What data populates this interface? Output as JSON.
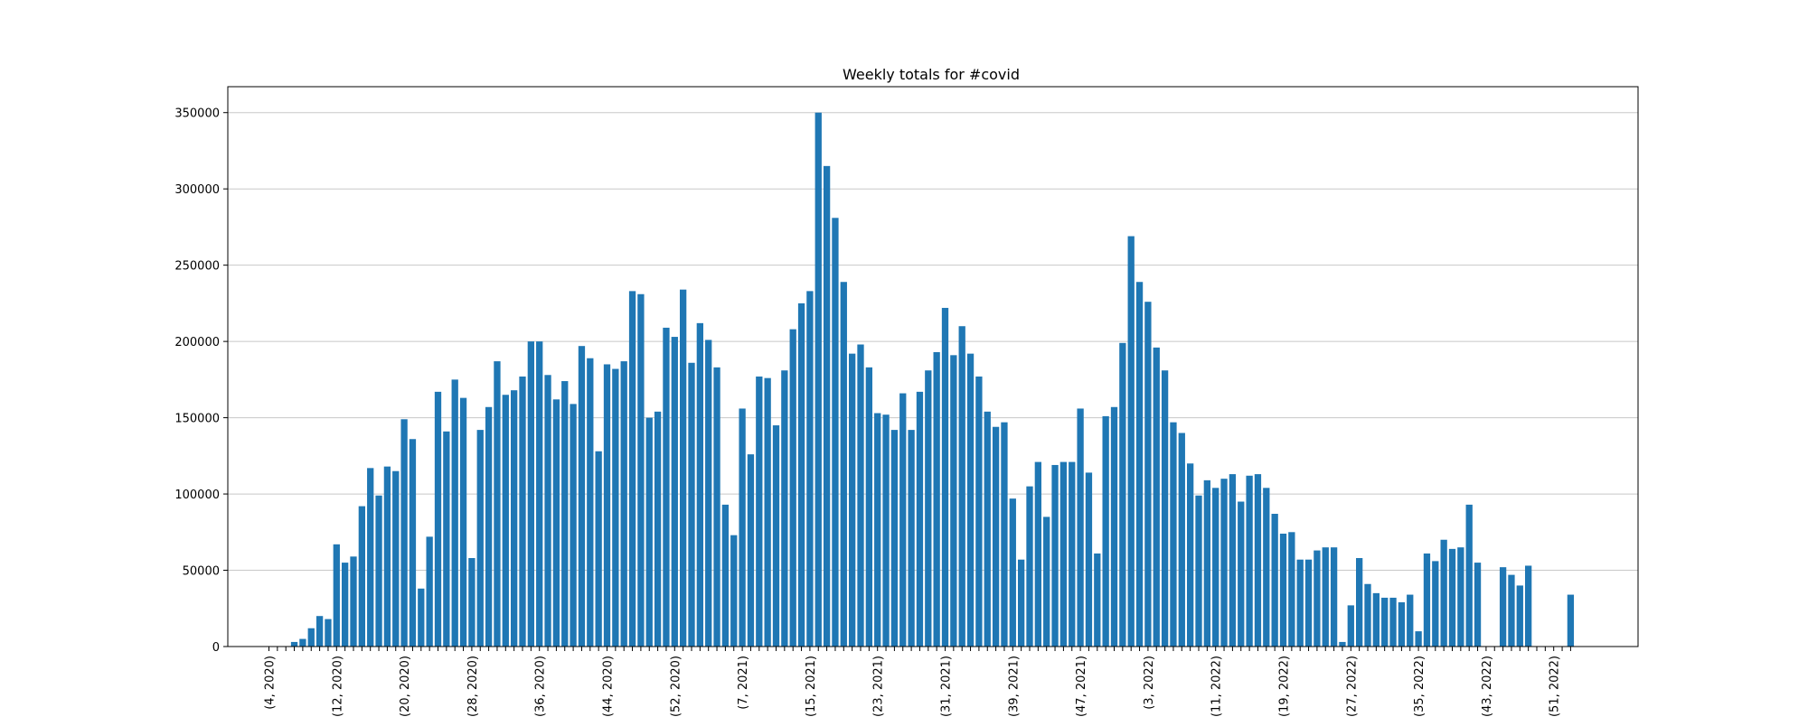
{
  "chart_data": {
    "type": "bar",
    "title": "Weekly totals for #covid",
    "xlabel": "",
    "ylabel": "",
    "ylim": [
      0,
      367000
    ],
    "yticks": [
      0,
      50000,
      100000,
      150000,
      200000,
      250000,
      300000,
      350000
    ],
    "grid": "horizontal",
    "bar_color": "#1f77b4",
    "tick_labels": [
      {
        "index": 0,
        "label": "(4, 2020)"
      },
      {
        "index": 8,
        "label": "(12, 2020)"
      },
      {
        "index": 16,
        "label": "(20, 2020)"
      },
      {
        "index": 24,
        "label": "(28, 2020)"
      },
      {
        "index": 32,
        "label": "(36, 2020)"
      },
      {
        "index": 40,
        "label": "(44, 2020)"
      },
      {
        "index": 48,
        "label": "(52, 2020)"
      },
      {
        "index": 56,
        "label": "(7, 2021)"
      },
      {
        "index": 64,
        "label": "(15, 2021)"
      },
      {
        "index": 72,
        "label": "(23, 2021)"
      },
      {
        "index": 80,
        "label": "(31, 2021)"
      },
      {
        "index": 88,
        "label": "(39, 2021)"
      },
      {
        "index": 96,
        "label": "(47, 2021)"
      },
      {
        "index": 104,
        "label": "(3, 2022)"
      },
      {
        "index": 112,
        "label": "(11, 2022)"
      },
      {
        "index": 120,
        "label": "(19, 2022)"
      },
      {
        "index": 128,
        "label": "(27, 2022)"
      },
      {
        "index": 136,
        "label": "(35, 2022)"
      },
      {
        "index": 144,
        "label": "(43, 2022)"
      },
      {
        "index": 152,
        "label": "(51, 2022)"
      }
    ],
    "values": [
      0,
      0,
      0,
      3000,
      5000,
      12000,
      20000,
      18000,
      67000,
      55000,
      59000,
      92000,
      117000,
      99000,
      118000,
      115000,
      149000,
      136000,
      38000,
      72000,
      167000,
      141000,
      175000,
      163000,
      58000,
      142000,
      157000,
      187000,
      165000,
      168000,
      177000,
      200000,
      200000,
      178000,
      162000,
      174000,
      159000,
      197000,
      189000,
      128000,
      185000,
      182000,
      187000,
      233000,
      231000,
      150000,
      154000,
      209000,
      203000,
      234000,
      186000,
      212000,
      201000,
      183000,
      93000,
      73000,
      156000,
      126000,
      177000,
      176000,
      145000,
      181000,
      208000,
      225000,
      233000,
      350000,
      315000,
      281000,
      239000,
      192000,
      198000,
      183000,
      153000,
      152000,
      142000,
      166000,
      142000,
      167000,
      181000,
      193000,
      222000,
      191000,
      210000,
      192000,
      177000,
      154000,
      144000,
      147000,
      97000,
      57000,
      105000,
      121000,
      85000,
      119000,
      121000,
      121000,
      156000,
      114000,
      61000,
      151000,
      157000,
      199000,
      269000,
      239000,
      226000,
      196000,
      181000,
      147000,
      140000,
      120000,
      99000,
      109000,
      104000,
      110000,
      113000,
      95000,
      112000,
      113000,
      104000,
      87000,
      74000,
      75000,
      57000,
      57000,
      63000,
      65000,
      65000,
      3000,
      27000,
      58000,
      41000,
      35000,
      32000,
      32000,
      29000,
      34000,
      10000,
      61000,
      56000,
      70000,
      64000,
      65000,
      93000,
      55000,
      0,
      0,
      52000,
      47000,
      40000,
      53000,
      0,
      0,
      0,
      0,
      34000
    ]
  }
}
